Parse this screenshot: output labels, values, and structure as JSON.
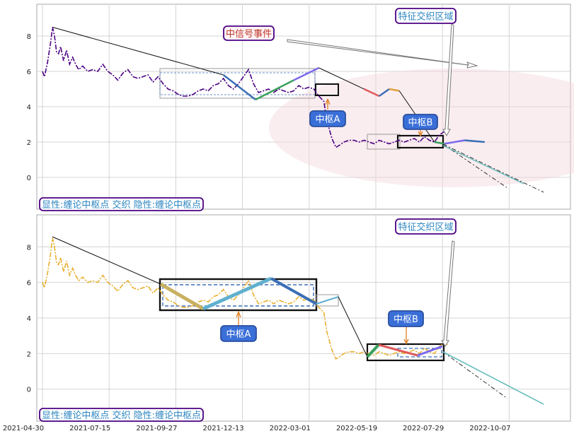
{
  "chart_data": [
    {
      "type": "line",
      "panel": "top",
      "ylim": [
        -1.8,
        9.8
      ],
      "yticks": [
        0,
        2,
        4,
        6,
        8
      ],
      "grid": true,
      "price_color": "#4b0082",
      "annotations": {
        "signal_event": "中信号事件",
        "feature_zone": "特征交织区域",
        "hub_a": "中枢A",
        "hub_b": "中枢B",
        "legend_text": "显性:缠论中枢点 交织 隐性:缠论中枢点"
      },
      "series": [
        {
          "values": [
            [
              0,
              6.0
            ],
            [
              2,
              5.7
            ],
            [
              5,
              6.5
            ],
            [
              8,
              7.6
            ],
            [
              10,
              8.5
            ],
            [
              12,
              8.0
            ],
            [
              14,
              7.1
            ],
            [
              16,
              7.0
            ],
            [
              18,
              7.4
            ],
            [
              21,
              6.6
            ],
            [
              24,
              7.2
            ],
            [
              27,
              6.4
            ],
            [
              30,
              6.8
            ],
            [
              33,
              6.4
            ],
            [
              36,
              6.1
            ],
            [
              40,
              6.3
            ],
            [
              45,
              6.0
            ],
            [
              50,
              6.1
            ],
            [
              55,
              6.0
            ],
            [
              60,
              6.4
            ],
            [
              65,
              6.0
            ],
            [
              70,
              5.8
            ],
            [
              75,
              5.5
            ],
            [
              80,
              5.9
            ],
            [
              85,
              6.1
            ],
            [
              90,
              5.7
            ],
            [
              95,
              5.6
            ],
            [
              100,
              5.7
            ],
            [
              105,
              5.8
            ],
            [
              110,
              5.4
            ],
            [
              115,
              5.7
            ],
            [
              120,
              5.3
            ],
            [
              125,
              5.0
            ],
            [
              130,
              4.9
            ],
            [
              135,
              4.7
            ],
            [
              140,
              4.6
            ],
            [
              145,
              4.6
            ],
            [
              150,
              4.7
            ],
            [
              155,
              4.9
            ],
            [
              160,
              5.0
            ],
            [
              165,
              4.9
            ],
            [
              170,
              5.2
            ],
            [
              175,
              5.3
            ],
            [
              180,
              5.6
            ],
            [
              185,
              5.2
            ],
            [
              190,
              5.0
            ],
            [
              195,
              5.3
            ],
            [
              200,
              5.7
            ],
            [
              205,
              6.1
            ],
            [
              210,
              5.3
            ],
            [
              215,
              4.8
            ],
            [
              220,
              4.9
            ],
            [
              225,
              5.0
            ],
            [
              230,
              4.8
            ],
            [
              235,
              5.0
            ],
            [
              240,
              4.9
            ],
            [
              245,
              4.8
            ],
            [
              250,
              4.9
            ],
            [
              255,
              5.2
            ],
            [
              260,
              5.0
            ],
            [
              265,
              5.1
            ],
            [
              270,
              5.0
            ],
            [
              275,
              4.6
            ],
            [
              280,
              4.3
            ],
            [
              283,
              3.2
            ],
            [
              288,
              2.2
            ],
            [
              292,
              1.7
            ],
            [
              295,
              1.8
            ],
            [
              300,
              2.0
            ],
            [
              305,
              2.1
            ],
            [
              310,
              2.1
            ],
            [
              315,
              2.0
            ],
            [
              320,
              2.1
            ],
            [
              325,
              2.0
            ],
            [
              330,
              1.9
            ],
            [
              335,
              2.1
            ],
            [
              340,
              2.0
            ],
            [
              345,
              1.9
            ],
            [
              350,
              2.0
            ],
            [
              355,
              2.1
            ],
            [
              360,
              2.0
            ],
            [
              365,
              2.1
            ],
            [
              370,
              2.2
            ],
            [
              375,
              2.0
            ],
            [
              380,
              2.3
            ],
            [
              385,
              2.1
            ],
            [
              390,
              2.0
            ],
            [
              395,
              2.4
            ],
            [
              400,
              2.6
            ],
            [
              403,
              2.5
            ]
          ]
        }
      ],
      "strokes": [
        {
          "from": [
            10,
            8.5
          ],
          "to": [
            180,
            5.8
          ],
          "color": "#111111"
        },
        {
          "from": [
            180,
            5.8
          ],
          "to": [
            212,
            4.4
          ],
          "color": "#3b6fb6"
        },
        {
          "from": [
            212,
            4.4
          ],
          "to": [
            250,
            5.5
          ],
          "color": "#3aa05a"
        },
        {
          "from": [
            250,
            5.5
          ],
          "to": [
            275,
            6.2
          ],
          "color": "#7b68ee"
        },
        {
          "from": [
            275,
            6.2
          ],
          "to": [
            320,
            5.0
          ],
          "color": "#111111"
        },
        {
          "from": [
            320,
            5.0
          ],
          "to": [
            335,
            4.6
          ],
          "color": "#e05a5a"
        },
        {
          "from": [
            335,
            4.6
          ],
          "to": [
            345,
            5.0
          ],
          "color": "#3b6fb6"
        },
        {
          "from": [
            345,
            5.0
          ],
          "to": [
            355,
            4.9
          ],
          "color": "#e0a040"
        },
        {
          "from": [
            355,
            4.9
          ],
          "to": [
            390,
            2.0
          ],
          "color": "#111111"
        },
        {
          "from": [
            390,
            2.0
          ],
          "to": [
            400,
            1.9
          ],
          "color": "#3aa05a"
        },
        {
          "from": [
            400,
            1.9
          ],
          "to": [
            420,
            2.1
          ],
          "color": "#7b68ee"
        },
        {
          "from": [
            420,
            2.1
          ],
          "to": [
            440,
            2.0
          ],
          "color": "#3b6fb6"
        }
      ]
    },
    {
      "type": "line",
      "panel": "bottom",
      "ylim": [
        -1.8,
        9.8
      ],
      "yticks": [
        0,
        2,
        4,
        6,
        8
      ],
      "grid": true,
      "price_color": "#e8b030",
      "xticks": [
        "2021-04-30",
        "2021-07-15",
        "2021-09-27",
        "2021-12-13",
        "2022-03-01",
        "2022-05-19",
        "2022-07-29",
        "2022-10-07"
      ],
      "annotations": {
        "feature_zone": "特征交织区域",
        "hub_a": "中枢A",
        "hub_b": "中枢B",
        "legend_text": "显性:缠论中枢点 交织 隐性:缠论中枢点"
      }
    }
  ]
}
